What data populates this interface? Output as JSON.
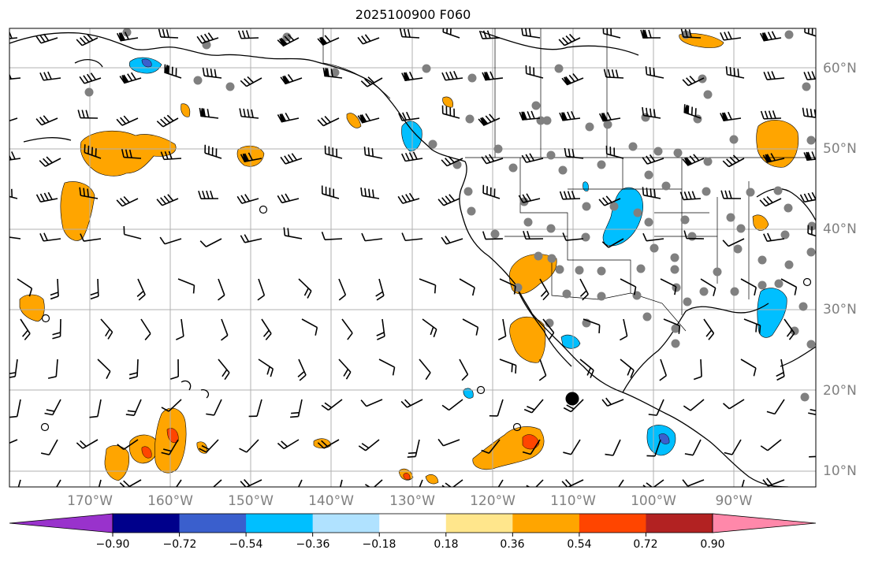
{
  "title": "2025100900 F060",
  "lon_labels": [
    "170°W",
    "160°W",
    "150°W",
    "140°W",
    "130°W",
    "120°W",
    "110°W",
    "100°W",
    "90°W"
  ],
  "lat_labels": [
    "60°N",
    "50°N",
    "40°N",
    "30°N",
    "20°N",
    "10°N"
  ],
  "colorbar": {
    "tick_labels": [
      "−0.90",
      "−0.72",
      "−0.54",
      "−0.36",
      "−0.18",
      "0.18",
      "0.36",
      "0.54",
      "0.72",
      "0.90"
    ],
    "colors": [
      "#9932cc",
      "#00008b",
      "#3a5fcd",
      "#00bfff",
      "#b0e2ff",
      "#ffffff",
      "#ffe68c",
      "#ffa500",
      "#ff4500",
      "#b22222",
      "#ff88aa"
    ]
  },
  "chart_data": {
    "type": "map",
    "title": "2025100900 F060",
    "lon_range": [
      -180,
      -80
    ],
    "lat_range": [
      8,
      65
    ],
    "grid": true,
    "levels": [
      -0.9,
      -0.72,
      -0.54,
      -0.36,
      -0.18,
      0.18,
      0.36,
      0.54,
      0.72,
      0.9
    ],
    "legend_placement": "bottom colorbar with extend arrows",
    "notable_marker": {
      "lon": -110,
      "lat": 19,
      "symbol": "large black dot"
    }
  }
}
